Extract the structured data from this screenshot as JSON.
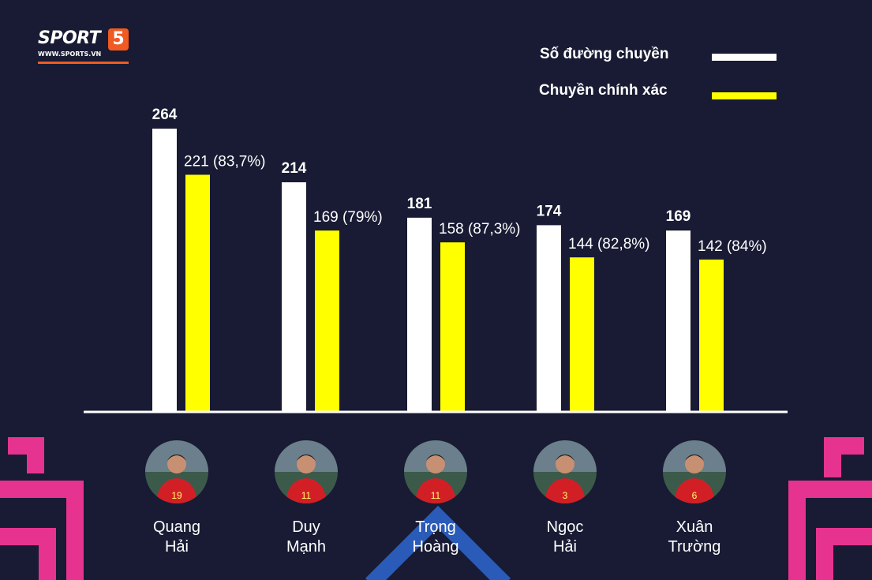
{
  "logo": {
    "brand": "SPORT",
    "badge": "5",
    "url": "WWW.SPORTS.VN"
  },
  "colors": {
    "background": "#181b33",
    "total": "#ffffff",
    "accurate": "#ffff00",
    "accent_pink": "#e6338f",
    "accent_blue": "#2a5bb8",
    "brand_orange": "#f05a23"
  },
  "chart_data": {
    "type": "bar",
    "categories": [
      "Quang Hải",
      "Duy Mạnh",
      "Trọng Hoàng",
      "Ngọc Hải",
      "Xuân Trường"
    ],
    "series": [
      {
        "name": "Số đường chuyền",
        "values": [
          264,
          214,
          181,
          174,
          169
        ],
        "labels": [
          "264",
          "214",
          "181",
          "174",
          "169"
        ]
      },
      {
        "name": "Chuyền chính xác",
        "values": [
          221,
          169,
          158,
          144,
          142
        ],
        "labels": [
          "221 (83,7%)",
          "169 (79%)",
          "158 (87,3%)",
          "144 (82,8%)",
          "142 (84%)"
        ]
      }
    ],
    "ylim": [
      0,
      264
    ],
    "legend": "top-right",
    "grid": false
  },
  "players": [
    {
      "line1": "Quang",
      "line2": "Hải",
      "shirt": "19"
    },
    {
      "line1": "Duy",
      "line2": "Mạnh",
      "shirt": "11"
    },
    {
      "line1": "Trọng",
      "line2": "Hoàng",
      "shirt": "11"
    },
    {
      "line1": "Ngọc",
      "line2": "Hải",
      "shirt": "3"
    },
    {
      "line1": "Xuân",
      "line2": "Trường",
      "shirt": "6"
    }
  ]
}
